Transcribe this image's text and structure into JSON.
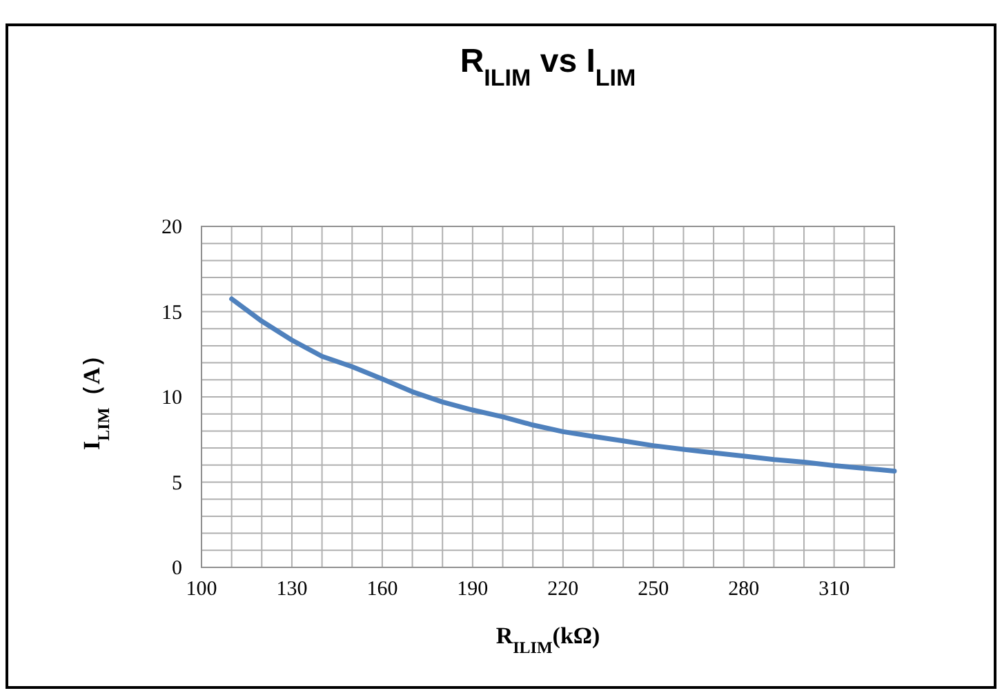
{
  "chart_data": {
    "type": "line",
    "title": "R$_{ILIM}$ vs I$_{LIM}$",
    "xlabel": "R$_{ILIM}$(kΩ)",
    "ylabel": "I$_{LIM}$（A）",
    "x": [
      110,
      120,
      130,
      140,
      150,
      160,
      170,
      180,
      190,
      200,
      210,
      220,
      230,
      240,
      250,
      260,
      270,
      280,
      290,
      300,
      310,
      320,
      330
    ],
    "series": [
      {
        "color": "#4f81bd",
        "values": [
          15.75,
          14.44,
          13.33,
          12.38,
          11.77,
          11.05,
          10.3,
          9.7,
          9.23,
          8.83,
          8.35,
          7.96,
          7.68,
          7.42,
          7.14,
          6.92,
          6.72,
          6.53,
          6.33,
          6.17,
          5.97,
          5.81,
          5.65
        ]
      }
    ],
    "xlim": [
      100,
      330
    ],
    "ylim": [
      0,
      20
    ],
    "xticks": [
      100,
      {
        "value": 110,
        "label": null
      },
      {
        "value": 120,
        "label": null
      },
      130,
      {
        "value": 140,
        "label": null
      },
      {
        "value": 150,
        "label": null
      },
      160,
      {
        "value": 170,
        "label": null
      },
      {
        "value": 180,
        "label": null
      },
      190,
      {
        "value": 200,
        "label": null
      },
      {
        "value": 210,
        "label": null
      },
      220,
      {
        "value": 230,
        "label": null
      },
      {
        "value": 240,
        "label": null
      },
      250,
      {
        "value": 260,
        "label": null
      },
      {
        "value": 270,
        "label": null
      },
      280,
      {
        "value": 290,
        "label": null
      },
      {
        "value": 300,
        "label": null
      },
      310,
      {
        "value": 320,
        "label": null
      },
      {
        "value": 330,
        "label": null
      }
    ],
    "yticks": [
      0,
      {
        "value": 1,
        "label": null
      },
      {
        "value": 2,
        "label": null
      },
      {
        "value": 3,
        "label": null
      },
      {
        "value": 4,
        "label": null
      },
      5,
      {
        "value": 6,
        "label": null
      },
      {
        "value": 7,
        "label": null
      },
      {
        "value": 8,
        "label": null
      },
      {
        "value": 9,
        "label": null
      },
      10,
      {
        "value": 11,
        "label": null
      },
      {
        "value": 12,
        "label": null
      },
      {
        "value": 13,
        "label": null
      },
      {
        "value": 14,
        "label": null
      },
      15,
      {
        "value": 16,
        "label": null
      },
      {
        "value": 17,
        "label": null
      },
      {
        "value": 18,
        "label": null
      },
      {
        "value": 19,
        "label": null
      },
      20
    ],
    "grid": true,
    "marker": "none",
    "line_style": "solid"
  }
}
